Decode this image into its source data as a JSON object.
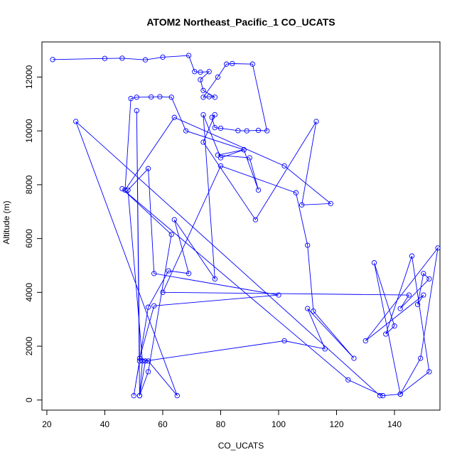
{
  "chart_data": {
    "type": "line",
    "title": "ATOM2 Northeast_Pacific_1 CO_UCATS",
    "xlabel": "CO_UCATS",
    "ylabel": "Altitude (m)",
    "xlim": [
      18.3,
      155.7
    ],
    "ylim": [
      -375,
      13305
    ],
    "xticks": [
      20,
      40,
      60,
      80,
      100,
      120,
      140
    ],
    "yticks": [
      0,
      2000,
      4000,
      6000,
      8000,
      10000,
      12000
    ],
    "grid": false,
    "legend": "none",
    "series_color": "#0000ff",
    "series": [
      {
        "x": [
          22,
          40,
          46,
          54,
          60,
          69,
          71,
          73,
          76,
          73,
          74,
          78,
          76,
          74,
          79,
          82,
          84,
          91,
          96,
          93,
          89,
          86,
          80,
          78,
          77,
          78,
          74,
          92,
          113,
          108,
          118,
          102,
          64,
          47,
          49,
          51,
          56,
          59,
          63,
          68,
          88,
          79,
          90,
          93,
          88,
          80,
          74,
          78,
          64,
          69,
          62,
          55,
          50,
          52,
          51,
          52,
          55,
          63,
          46,
          124,
          136,
          142,
          152,
          146,
          137,
          140,
          133,
          142,
          149,
          155,
          130,
          150,
          148,
          150,
          152,
          142,
          145,
          60,
          80,
          106,
          110,
          112,
          126,
          110,
          116,
          102,
          54,
          52,
          53,
          48,
          55,
          57,
          100,
          57,
          52,
          55,
          65,
          30,
          135
        ],
        "y": [
          12650,
          12690,
          12700,
          12640,
          12740,
          12800,
          12200,
          12180,
          12200,
          11900,
          11500,
          11250,
          11270,
          11250,
          12000,
          12480,
          12500,
          12480,
          10000,
          10020,
          10000,
          10010,
          10100,
          10120,
          10500,
          10600,
          9580,
          6700,
          10350,
          7250,
          7300,
          8700,
          10500,
          7800,
          11200,
          11250,
          11260,
          11270,
          11250,
          10000,
          9300,
          9100,
          9000,
          7800,
          9300,
          9000,
          10600,
          4500,
          6700,
          4700,
          4800,
          3450,
          160,
          1450,
          10750,
          160,
          1050,
          6150,
          7850,
          750,
          160,
          220,
          1050,
          5350,
          2450,
          2750,
          5100,
          220,
          1550,
          5650,
          2200,
          3900,
          3550,
          4700,
          4500,
          3400,
          3900,
          4000,
          8700,
          7700,
          5750,
          3300,
          1550,
          3400,
          1900,
          2200,
          1450,
          160,
          1450,
          7800,
          8600,
          4700,
          3900,
          3500,
          1550,
          1450,
          160,
          10350,
          160
        ]
      }
    ]
  }
}
